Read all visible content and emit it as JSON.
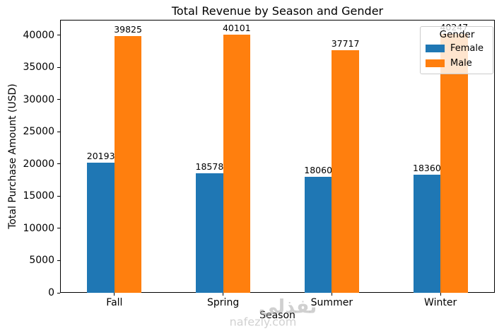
{
  "chart_data": {
    "type": "bar",
    "title": "Total Revenue by Season and Gender",
    "xlabel": "Season",
    "ylabel": "Total Purchase Amount (USD)",
    "categories": [
      "Fall",
      "Spring",
      "Summer",
      "Winter"
    ],
    "series": [
      {
        "name": "Female",
        "color": "#1f77b4",
        "values": [
          20193,
          18578,
          18060,
          18360
        ]
      },
      {
        "name": "Male",
        "color": "#ff7f0e",
        "values": [
          39825,
          40101,
          37717,
          40247
        ]
      }
    ],
    "yticks": [
      0,
      5000,
      10000,
      15000,
      20000,
      25000,
      30000,
      35000,
      40000
    ],
    "ylim": [
      0,
      42400
    ],
    "bar_labels": true,
    "grid": false,
    "legend": {
      "title": "Gender",
      "position": "upper right"
    }
  },
  "watermark": {
    "arabic": "نفذلي",
    "domain": "nafezly.com"
  }
}
